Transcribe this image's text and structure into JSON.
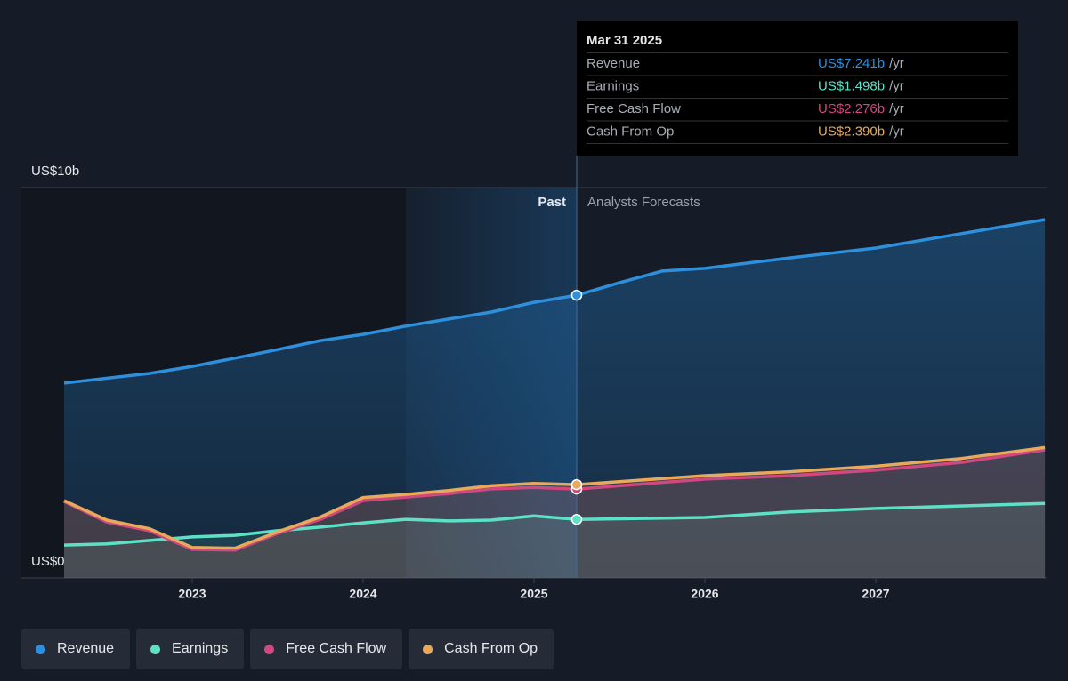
{
  "chart_data": {
    "type": "line",
    "xlim": [
      2022,
      2028
    ],
    "xticks": [
      2023,
      2024,
      2025,
      2026,
      2027
    ],
    "ylim": [
      0,
      10
    ],
    "yticks": [
      {
        "value": 0,
        "label": "US$0"
      },
      {
        "value": 10,
        "label": "US$10b"
      }
    ],
    "highlight": [
      2024.25,
      2025.25
    ],
    "annotations": [
      "Past",
      "Analysts Forecasts"
    ],
    "legend": "bottom-left",
    "series": [
      {
        "name": "Revenue",
        "color": "#2e8fdd",
        "x": [
          2022.25,
          2022.75,
          2023.0,
          2023.25,
          2023.5,
          2023.75,
          2024.0,
          2024.25,
          2024.5,
          2024.75,
          2025.0,
          2025.25,
          2025.5,
          2025.75,
          2026.0,
          2026.5,
          2027.0,
          2027.5,
          2027.99
        ],
        "values": [
          4.99,
          5.24,
          5.42,
          5.63,
          5.85,
          6.08,
          6.24,
          6.45,
          6.63,
          6.81,
          7.06,
          7.241,
          7.56,
          7.86,
          7.93,
          8.2,
          8.45,
          8.82,
          9.18
        ]
      },
      {
        "name": "Earnings",
        "color": "#5de0c5",
        "x": [
          2022.25,
          2022.5,
          2022.75,
          2023.0,
          2023.25,
          2023.5,
          2023.75,
          2024.0,
          2024.25,
          2024.5,
          2024.75,
          2025.0,
          2025.25,
          2026.0,
          2026.5,
          2027.0,
          2027.99
        ],
        "values": [
          0.84,
          0.87,
          0.96,
          1.05,
          1.09,
          1.21,
          1.3,
          1.41,
          1.5,
          1.46,
          1.48,
          1.59,
          1.498,
          1.55,
          1.69,
          1.78,
          1.91
        ]
      },
      {
        "name": "Free Cash Flow",
        "color": "#d1477f",
        "x": [
          2022.25,
          2022.5,
          2022.75,
          2023.0,
          2023.25,
          2023.5,
          2023.75,
          2024.0,
          2024.25,
          2024.5,
          2024.75,
          2025.0,
          2025.25,
          2026.0,
          2026.5,
          2027.0,
          2027.5,
          2027.99
        ],
        "values": [
          1.96,
          1.43,
          1.21,
          0.73,
          0.71,
          1.14,
          1.5,
          1.98,
          2.07,
          2.16,
          2.28,
          2.32,
          2.276,
          2.53,
          2.62,
          2.76,
          2.96,
          3.28
        ]
      },
      {
        "name": "Cash From Op",
        "color": "#e8a95a",
        "x": [
          2022.25,
          2022.5,
          2022.75,
          2023.0,
          2023.25,
          2023.5,
          2023.75,
          2024.0,
          2024.25,
          2024.5,
          2024.75,
          2025.0,
          2025.25,
          2026.0,
          2026.5,
          2027.0,
          2027.5,
          2027.99
        ],
        "values": [
          1.98,
          1.48,
          1.26,
          0.78,
          0.76,
          1.18,
          1.56,
          2.06,
          2.14,
          2.24,
          2.36,
          2.42,
          2.39,
          2.62,
          2.72,
          2.86,
          3.06,
          3.34
        ]
      }
    ],
    "tooltip": {
      "title": "Mar 31 2025",
      "unit": "/yr",
      "rows": [
        {
          "label": "Revenue",
          "value": "US$7.241b"
        },
        {
          "label": "Earnings",
          "value": "US$1.498b"
        },
        {
          "label": "Free Cash Flow",
          "value": "US$2.276b"
        },
        {
          "label": "Cash From Op",
          "value": "US$2.390b"
        }
      ]
    }
  }
}
